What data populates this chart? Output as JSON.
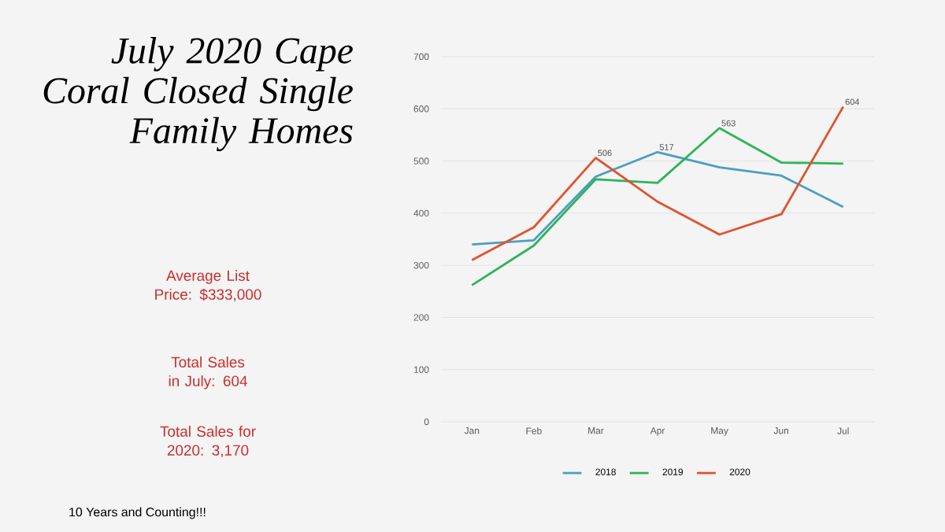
{
  "chart_data": {
    "type": "line",
    "title": "July 2020 Cape Coral Closed Single Family Homes",
    "annotations": [
      "Average List Price: $333,000",
      "Total Sales in July: 604",
      "Total Sales for 2020: 3,170",
      "10 Years and Counting!!!"
    ],
    "categories": [
      "Jan",
      "Feb",
      "Mar",
      "Apr",
      "May",
      "Jun",
      "Jul"
    ],
    "series": [
      {
        "name": "2018",
        "color": "#4a9fc0",
        "values": [
          340,
          348,
          470,
          517,
          488,
          472,
          412
        ],
        "value_labels": [
          null,
          null,
          null,
          "517",
          null,
          null,
          null
        ]
      },
      {
        "name": "2019",
        "color": "#2db35a",
        "values": [
          262,
          338,
          465,
          458,
          563,
          497,
          495
        ],
        "value_labels": [
          null,
          null,
          null,
          null,
          "563",
          null,
          null
        ]
      },
      {
        "name": "2020",
        "color": "#e0522e",
        "values": [
          310,
          373,
          506,
          422,
          359,
          398,
          604
        ],
        "value_labels": [
          null,
          null,
          "506",
          null,
          null,
          null,
          "604"
        ]
      }
    ],
    "ylim": [
      0,
      700
    ],
    "yticks": [
      0,
      100,
      200,
      300,
      400,
      500,
      600,
      700
    ],
    "grid": "y",
    "legend": "bottom",
    "marker": "none",
    "line_style": "solid"
  }
}
